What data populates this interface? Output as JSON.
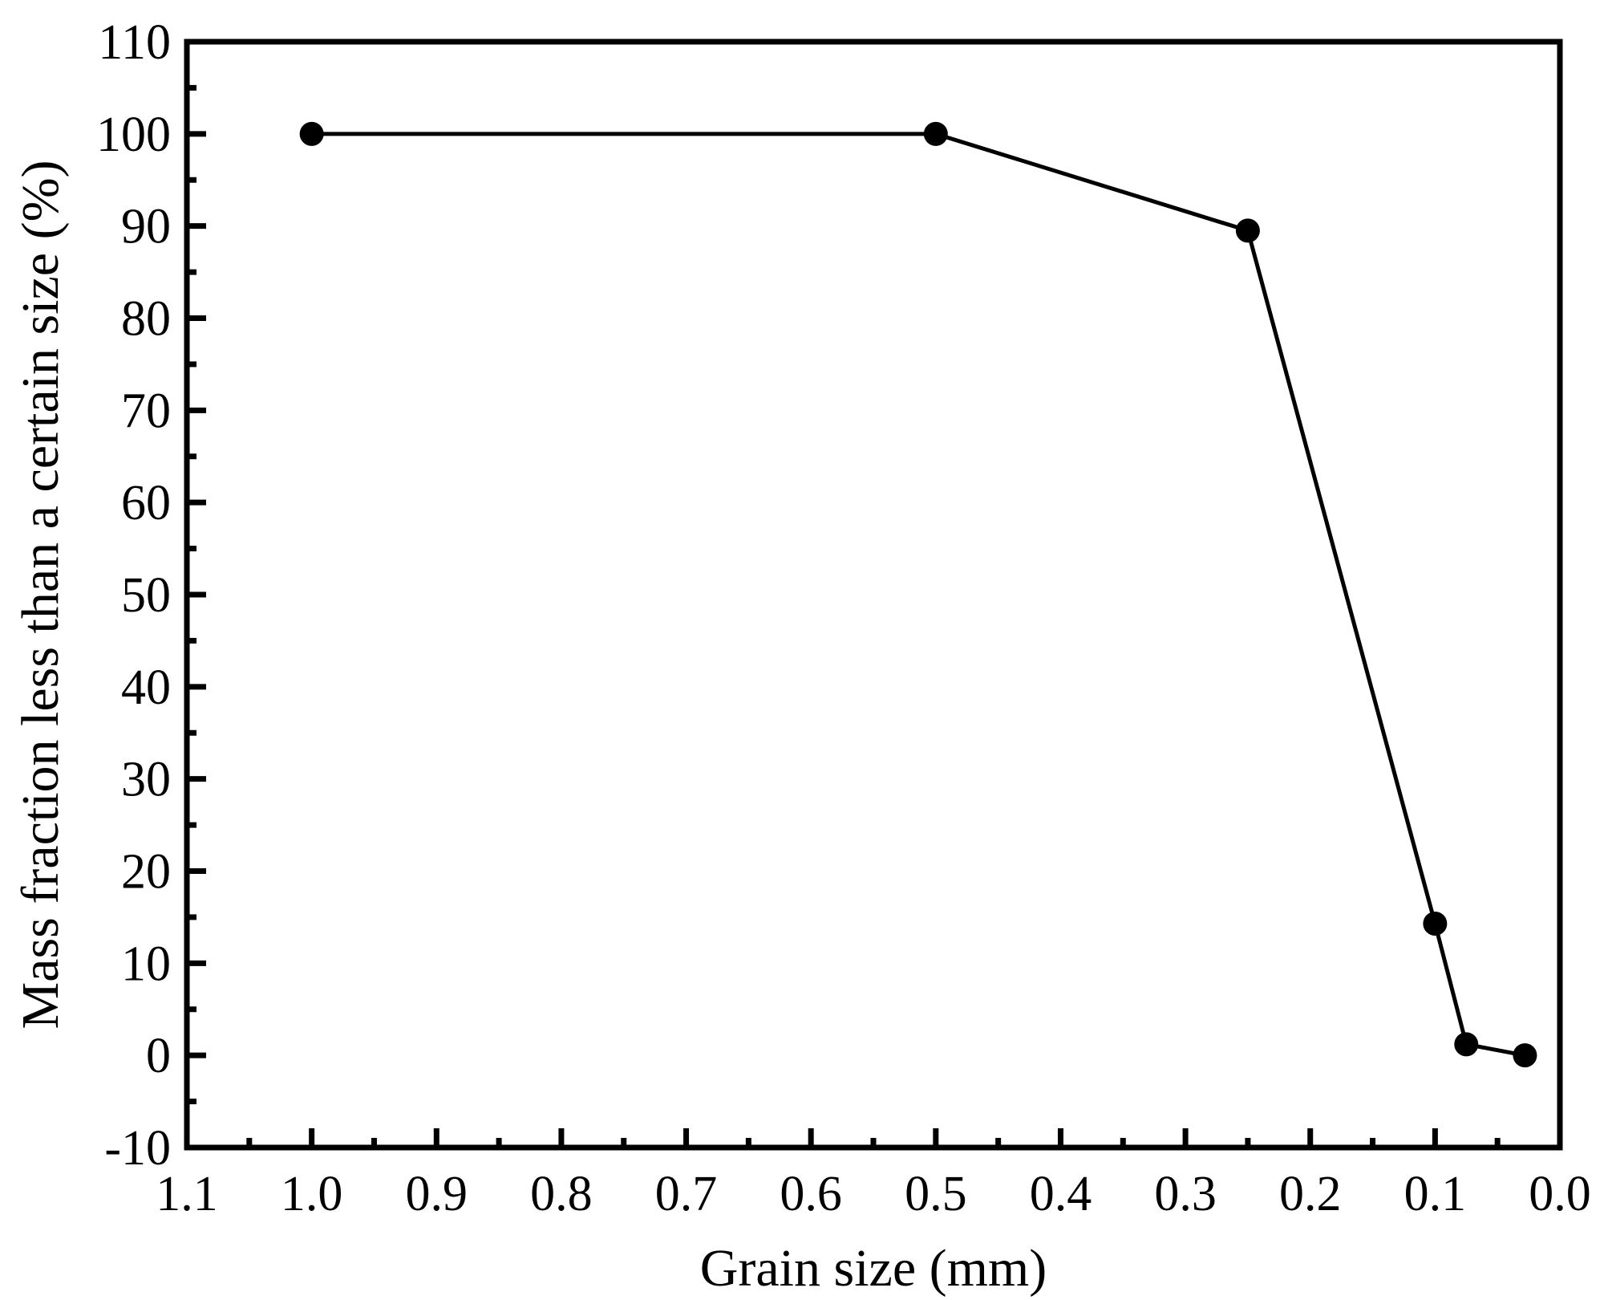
{
  "chart_data": {
    "type": "line",
    "xlabel": "Grain size (mm)",
    "ylabel": "Mass fraction less than a certain size (%)",
    "xlim": [
      1.1,
      0.0
    ],
    "x_reversed": true,
    "ylim": [
      -10,
      110
    ],
    "x_ticks": [
      "1.1",
      "1.0",
      "0.9",
      "0.8",
      "0.7",
      "0.6",
      "0.5",
      "0.4",
      "0.3",
      "0.2",
      "0.1",
      "0.0"
    ],
    "y_ticks": [
      "-10",
      "0",
      "10",
      "20",
      "30",
      "40",
      "50",
      "60",
      "70",
      "80",
      "90",
      "100",
      "110"
    ],
    "grid": false,
    "legend": "none",
    "series": [
      {
        "x": [
          1.0,
          0.5,
          0.25,
          0.1,
          0.075,
          0.028
        ],
        "y": [
          100,
          100,
          89.5,
          14.3,
          1.2,
          0.0
        ],
        "color": "#000000",
        "marker": "filled-circle"
      }
    ]
  }
}
